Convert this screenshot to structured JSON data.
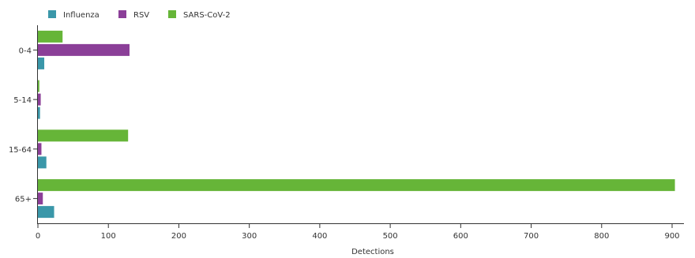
{
  "chart_data": {
    "type": "bar",
    "orientation": "horizontal",
    "categories": [
      "0-4",
      "5-14",
      "15-64",
      "65+"
    ],
    "series": [
      {
        "name": "Influenza",
        "color": "#3a97a9",
        "values": [
          9,
          3,
          12,
          23
        ]
      },
      {
        "name": "RSV",
        "color": "#8b3f98",
        "values": [
          130,
          4,
          5,
          7
        ]
      },
      {
        "name": "SARS-CoV-2",
        "color": "#66b538",
        "values": [
          35,
          2,
          128,
          904
        ]
      }
    ],
    "xlabel": "Detections",
    "ylabel": "",
    "xlim": [
      0,
      900
    ],
    "xticks": [
      0,
      100,
      200,
      300,
      400,
      500,
      600,
      700,
      800,
      900
    ],
    "legend_position": "top-left",
    "grid": false
  }
}
